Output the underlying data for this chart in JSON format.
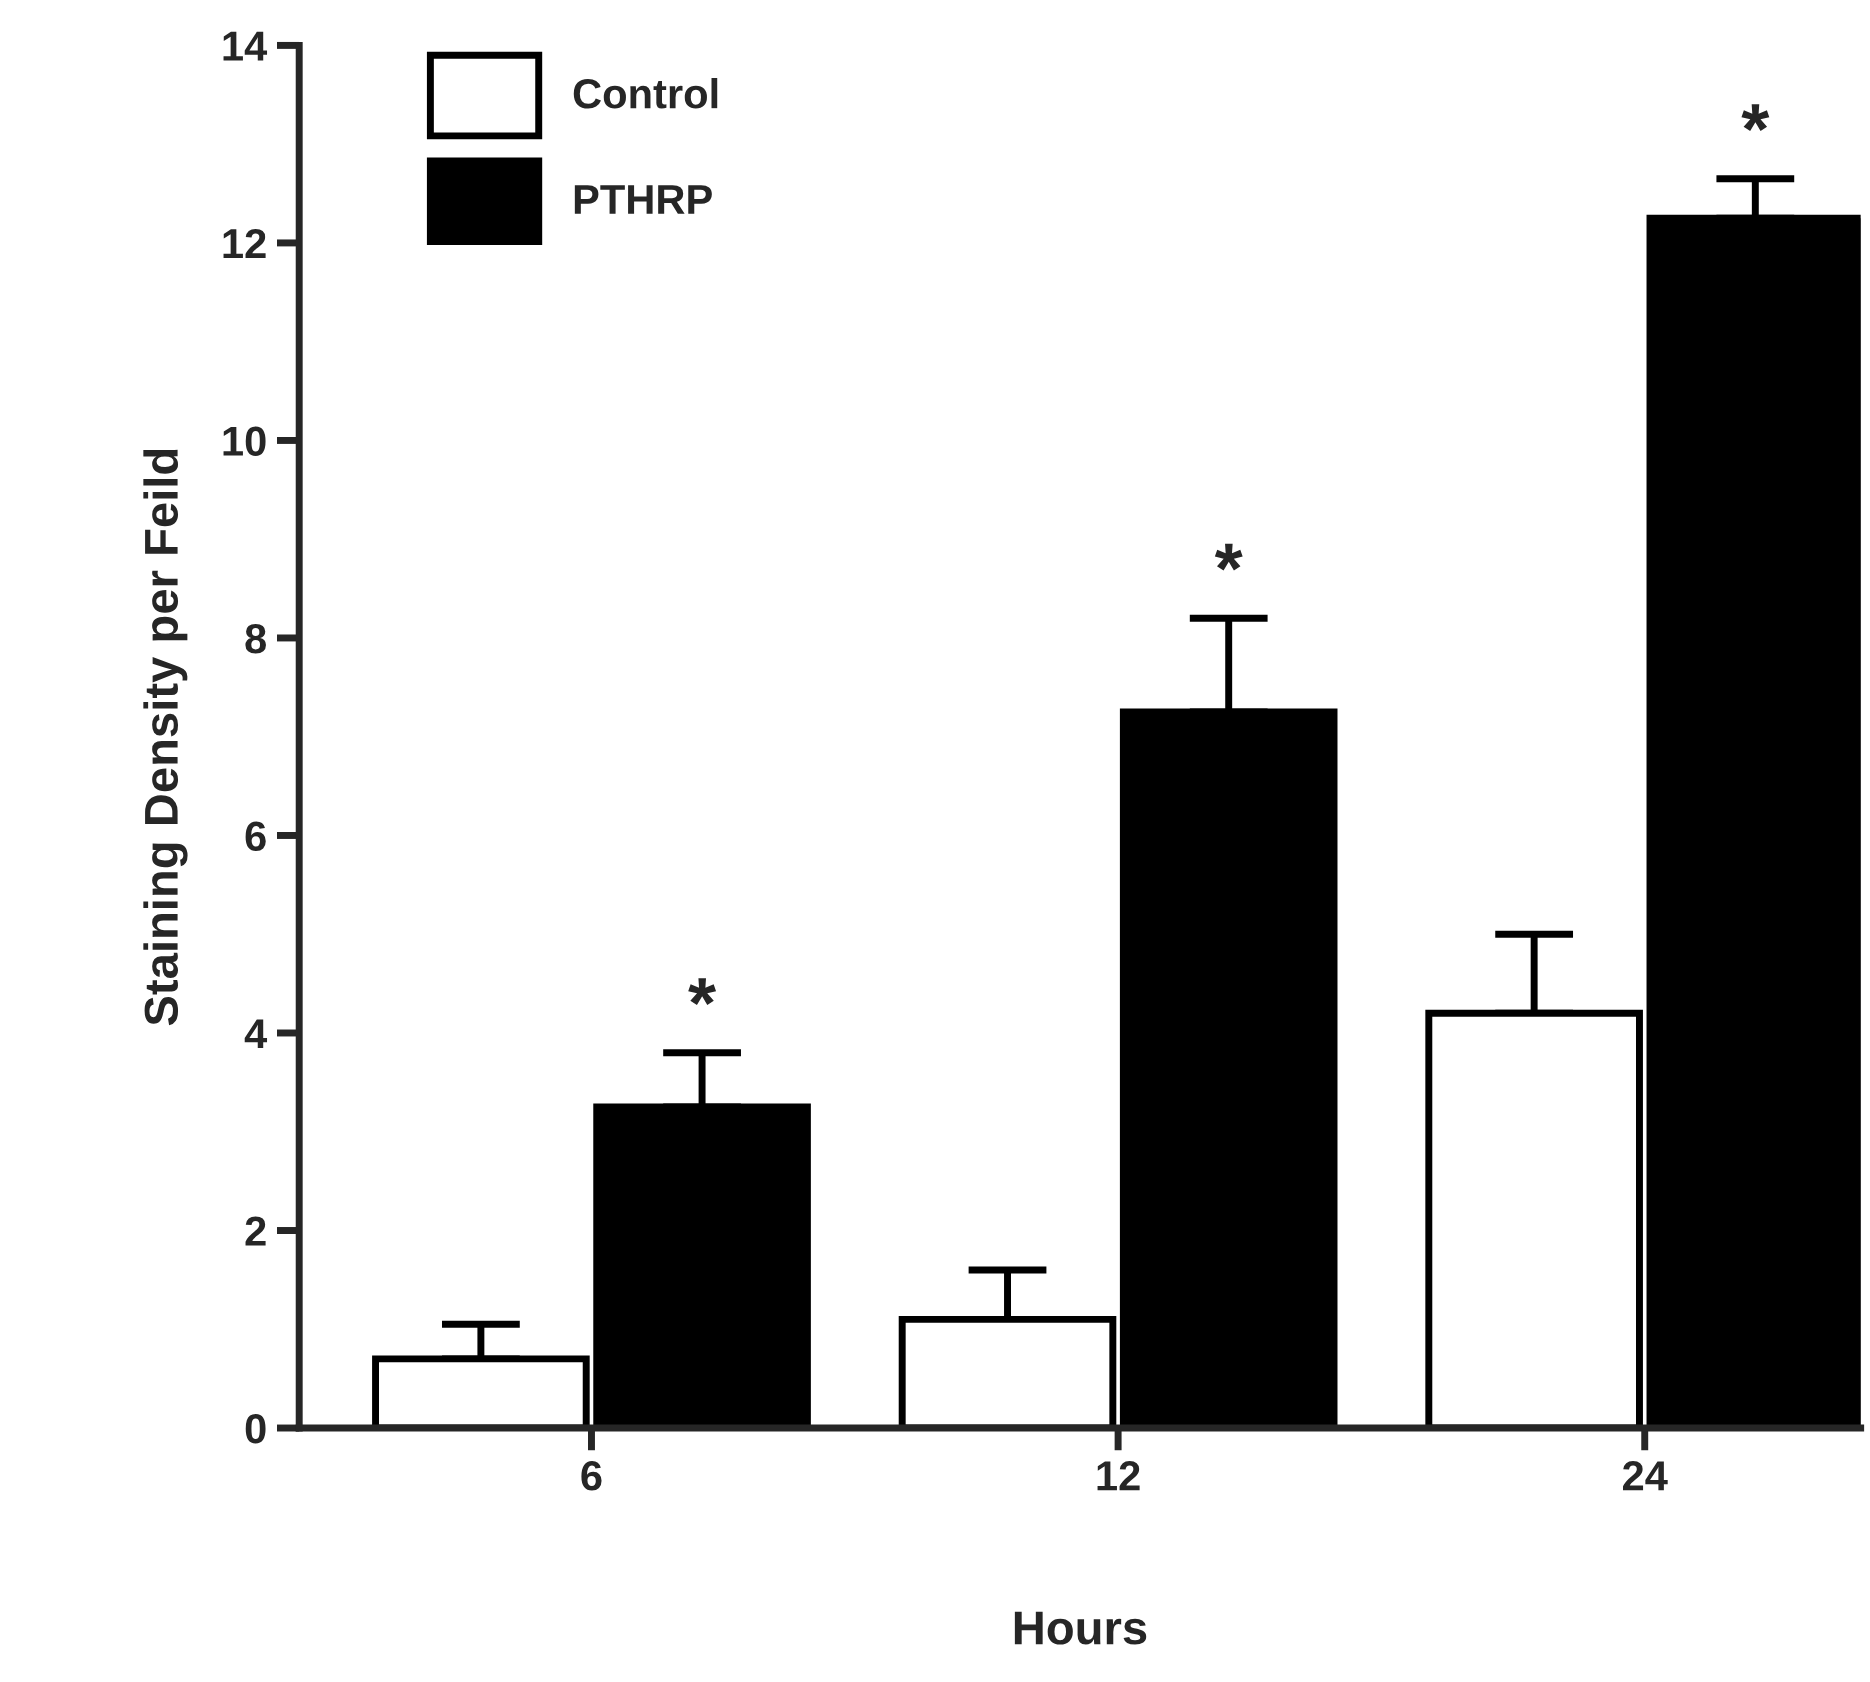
{
  "chart_data": {
    "type": "bar",
    "xlabel": "Hours",
    "ylabel": "Staining Density per Feild",
    "categories": [
      "6",
      "12",
      "24"
    ],
    "series": [
      {
        "name": "Control",
        "color": "#ffffff",
        "values": [
          0.7,
          1.1,
          4.2
        ],
        "errors": [
          [
            0.7,
            1.05
          ],
          [
            1.1,
            1.6
          ],
          [
            4.2,
            5.0
          ]
        ]
      },
      {
        "name": "PTHRP",
        "color": "#000000",
        "values": [
          3.25,
          7.25,
          12.25
        ],
        "errors": [
          [
            3.25,
            3.8
          ],
          [
            7.25,
            8.2
          ],
          [
            12.25,
            12.65
          ]
        ]
      }
    ],
    "ylim": [
      0,
      14
    ],
    "yticks": [
      0,
      2,
      4,
      6,
      8,
      10,
      12,
      14
    ],
    "grid": false,
    "legend": "top left",
    "annotations": [
      "*",
      "*",
      "*"
    ]
  }
}
